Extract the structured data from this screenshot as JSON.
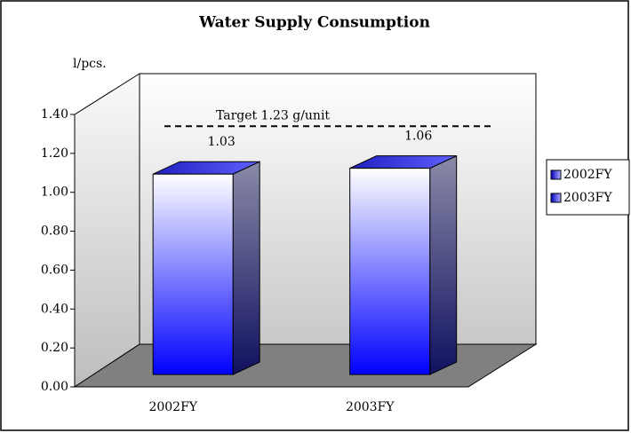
{
  "chart_data": {
    "type": "bar3d",
    "title": "Water Supply Consumption",
    "y_label": "l/pcs.",
    "categories": [
      "2002FY",
      "2003FY"
    ],
    "values": [
      1.03,
      1.06
    ],
    "color": "#0000ff",
    "ylim": [
      0,
      1.4
    ],
    "yticks": [
      {
        "value": 0,
        "label": "0.00"
      },
      {
        "value": 0.2,
        "label": "0.20"
      },
      {
        "value": 0.4,
        "label": "0.40"
      },
      {
        "value": 0.6,
        "label": "0.60"
      },
      {
        "value": 0.8,
        "label": "0.80"
      },
      {
        "value": 1,
        "label": "1.00"
      },
      {
        "value": 1.2,
        "label": "1.20"
      },
      {
        "value": 1.4,
        "label": "1.40"
      }
    ],
    "target": 1.23,
    "target_label": "Target 1.23 g/unit",
    "legend": "right"
  }
}
